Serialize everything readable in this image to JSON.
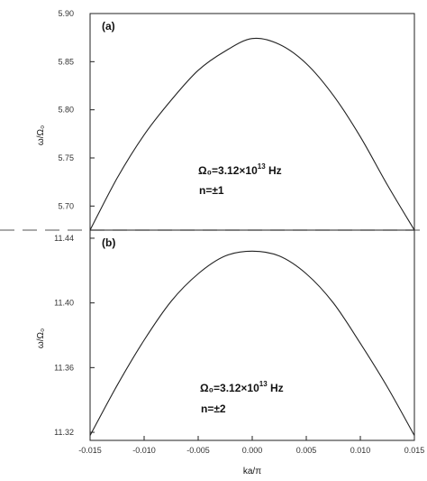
{
  "chart_data": [
    {
      "type": "line",
      "panel_label": "(a)",
      "ylabel": "ω/Ω₀",
      "xlabel": "",
      "xlim": [
        -0.015,
        0.015
      ],
      "ylim": [
        5.675,
        5.9
      ],
      "y_ticks": [
        "5.90",
        "5.85",
        "5.80",
        "5.75",
        "5.70"
      ],
      "x_ticks": [],
      "series": [
        {
          "x": [
            -0.015,
            -0.0125,
            -0.01,
            -0.0075,
            -0.005,
            -0.0025,
            0.0,
            0.0025,
            0.005,
            0.0075,
            0.01,
            0.0125,
            0.015
          ],
          "values": [
            5.675,
            5.729,
            5.774,
            5.81,
            5.841,
            5.861,
            5.874,
            5.868,
            5.848,
            5.815,
            5.772,
            5.722,
            5.675
          ]
        }
      ],
      "annotation_line1": "Ω₀=3.12×10",
      "annotation_exp": "13",
      "annotation_unit": " Hz",
      "annotation_line2": "n=±1",
      "grid": false
    },
    {
      "type": "line",
      "panel_label": "(b)",
      "ylabel": "ω/Ω₀",
      "xlabel": "ka/π",
      "xlim": [
        -0.015,
        0.015
      ],
      "ylim": [
        11.315,
        11.445
      ],
      "y_ticks": [
        "11.44",
        "11.40",
        "11.36",
        "11.32"
      ],
      "x_ticks": [
        "-0.015",
        "-0.010",
        "-0.005",
        "0.000",
        "0.005",
        "0.010",
        "0.015"
      ],
      "series": [
        {
          "x": [
            -0.015,
            -0.0125,
            -0.01,
            -0.0075,
            -0.005,
            -0.0025,
            0.0,
            0.0025,
            0.005,
            0.0075,
            0.01,
            0.0125,
            0.015
          ],
          "values": [
            11.318,
            11.349,
            11.377,
            11.401,
            11.418,
            11.429,
            11.432,
            11.429,
            11.418,
            11.4,
            11.375,
            11.348,
            11.318
          ]
        }
      ],
      "annotation_line1": "Ω₀=3.12×10",
      "annotation_exp": "13",
      "annotation_unit": " Hz",
      "annotation_line2": "n=±2",
      "grid": false
    }
  ]
}
